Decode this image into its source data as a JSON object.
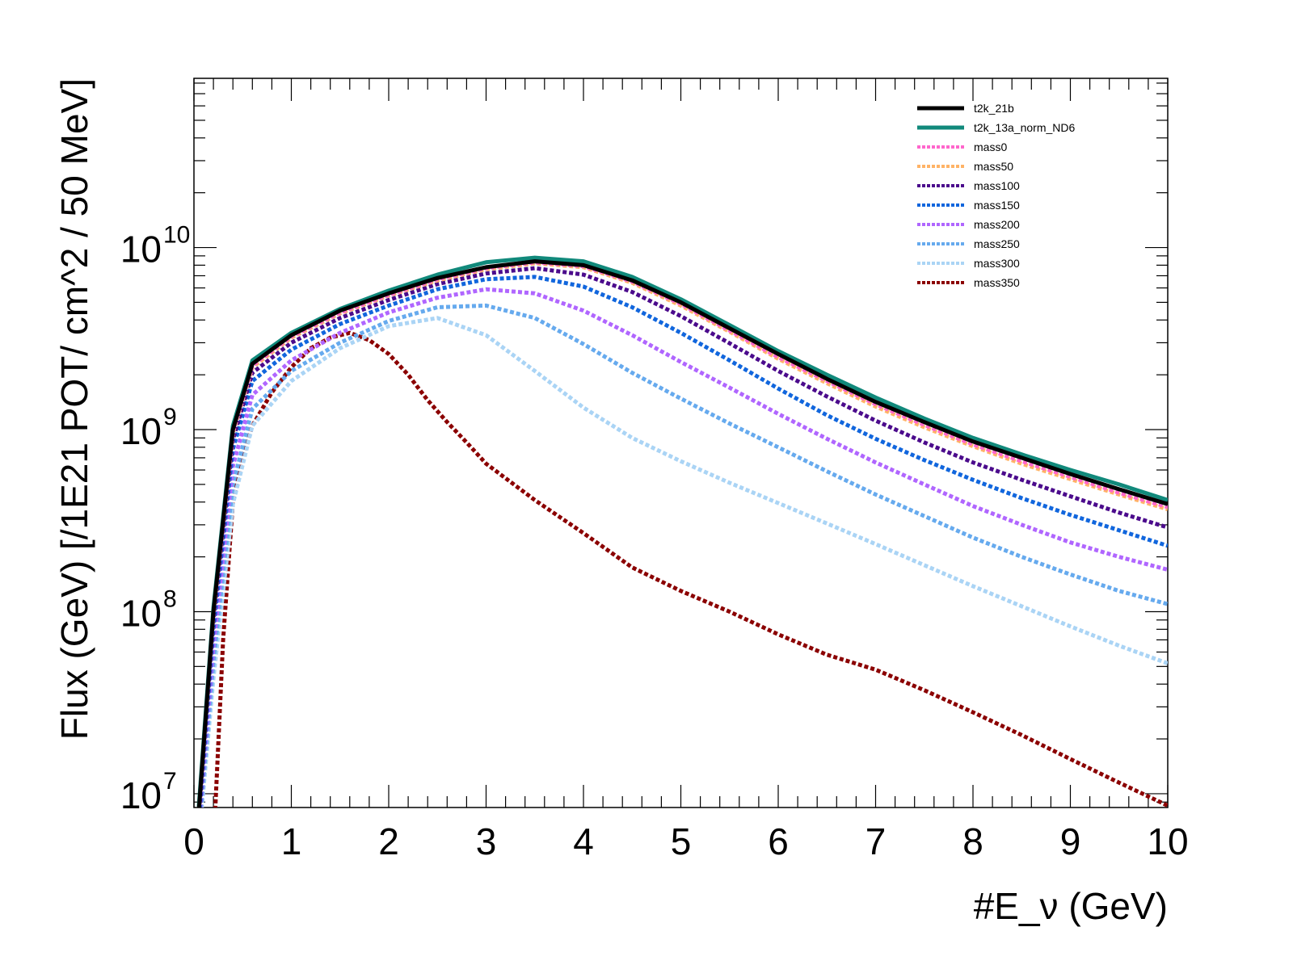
{
  "chart_data": {
    "type": "line",
    "xlabel": "#E_ν (GeV)",
    "ylabel": "Flux (GeV) [/1E21 POT/ cm^2 / 50 MeV]",
    "xlim": [
      0,
      10
    ],
    "ylim": [
      8400000.0,
      85000000000.0
    ],
    "yscale": "log",
    "x_ticks": [
      "0",
      "1",
      "2",
      "3",
      "4",
      "5",
      "6",
      "7",
      "8",
      "9",
      "10"
    ],
    "y_ticks": [
      {
        "base": "10",
        "exp": "7",
        "value": 10000000.0
      },
      {
        "base": "10",
        "exp": "8",
        "value": 100000000.0
      },
      {
        "base": "10",
        "exp": "9",
        "value": 1000000000.0
      },
      {
        "base": "10",
        "exp": "10",
        "value": 10000000000.0
      }
    ],
    "legend_position": "top-right",
    "grid": false,
    "series": [
      {
        "name": "t2k_21b",
        "color": "#000000",
        "style": "solid",
        "x": [
          0.05,
          0.2,
          0.4,
          0.6,
          1,
          1.5,
          2,
          2.5,
          3,
          3.5,
          4,
          4.5,
          5,
          5.5,
          6,
          6.5,
          7,
          7.5,
          8,
          8.5,
          9,
          9.5,
          10
        ],
        "y": [
          8000000.0,
          100000000.0,
          1000000000.0,
          2300000000.0,
          3300000000.0,
          4500000000.0,
          5600000000.0,
          6800000000.0,
          7800000000.0,
          8400000000.0,
          8000000000.0,
          6600000000.0,
          5000000000.0,
          3600000000.0,
          2600000000.0,
          1900000000.0,
          1420000000.0,
          1100000000.0,
          860000000.0,
          700000000.0,
          570000000.0,
          470000000.0,
          390000000.0
        ]
      },
      {
        "name": "t2k_13a_norm_ND6",
        "color": "#11897b",
        "style": "solid",
        "x": [
          0.05,
          0.2,
          0.4,
          0.6,
          1,
          1.5,
          2,
          2.5,
          3,
          3.5,
          4,
          4.5,
          5,
          5.5,
          6,
          6.5,
          7,
          7.5,
          8,
          8.5,
          9,
          9.5,
          10
        ],
        "y": [
          8500000.0,
          105000000.0,
          1050000000.0,
          2400000000.0,
          3400000000.0,
          4600000000.0,
          5800000000.0,
          7100000000.0,
          8300000000.0,
          8800000000.0,
          8400000000.0,
          6900000000.0,
          5200000000.0,
          3750000000.0,
          2700000000.0,
          2000000000.0,
          1500000000.0,
          1150000000.0,
          900000000.0,
          730000000.0,
          600000000.0,
          500000000.0,
          410000000.0
        ]
      },
      {
        "name": "mass0",
        "color": "#ff66cc",
        "style": "dotted",
        "x": [
          0.05,
          0.2,
          0.4,
          0.6,
          1,
          1.5,
          2,
          2.5,
          3,
          3.5,
          4,
          4.5,
          5,
          5.5,
          6,
          6.5,
          7,
          7.5,
          8,
          8.5,
          9,
          9.5,
          10
        ],
        "y": [
          8000000.0,
          100000000.0,
          980000000.0,
          2250000000.0,
          3250000000.0,
          4400000000.0,
          5500000000.0,
          6700000000.0,
          7700000000.0,
          8300000000.0,
          7900000000.0,
          6500000000.0,
          4900000000.0,
          3500000000.0,
          2500000000.0,
          1850000000.0,
          1380000000.0,
          1060000000.0,
          830000000.0,
          670000000.0,
          550000000.0,
          450000000.0,
          375000000.0
        ]
      },
      {
        "name": "mass50",
        "color": "#ffb366",
        "style": "dotted",
        "x": [
          0.05,
          0.2,
          0.4,
          0.6,
          1,
          1.5,
          2,
          2.5,
          3,
          3.5,
          4,
          4.5,
          5,
          5.5,
          6,
          6.5,
          7,
          7.5,
          8,
          8.5,
          9,
          9.5,
          10
        ],
        "y": [
          8000000.0,
          98000000.0,
          960000000.0,
          2200000000.0,
          3200000000.0,
          4350000000.0,
          5450000000.0,
          6600000000.0,
          7600000000.0,
          8200000000.0,
          7800000000.0,
          6400000000.0,
          4800000000.0,
          3450000000.0,
          2450000000.0,
          1800000000.0,
          1340000000.0,
          1030000000.0,
          810000000.0,
          650000000.0,
          535000000.0,
          440000000.0,
          365000000.0
        ]
      },
      {
        "name": "mass100",
        "color": "#4b0b8c",
        "style": "dotted",
        "x": [
          0.05,
          0.2,
          0.4,
          0.6,
          1,
          1.5,
          2,
          2.5,
          3,
          3.5,
          4,
          4.5,
          5,
          5.5,
          6,
          6.5,
          7,
          7.5,
          8,
          8.5,
          9,
          9.5,
          10
        ],
        "y": [
          7500000.0,
          90000000.0,
          880000000.0,
          2050000000.0,
          3000000000.0,
          4100000000.0,
          5150000000.0,
          6300000000.0,
          7200000000.0,
          7700000000.0,
          7100000000.0,
          5700000000.0,
          4200000000.0,
          2980000000.0,
          2100000000.0,
          1520000000.0,
          1120000000.0,
          850000000.0,
          660000000.0,
          530000000.0,
          430000000.0,
          350000000.0,
          290000000.0
        ]
      },
      {
        "name": "mass150",
        "color": "#1166dd",
        "style": "dotted",
        "x": [
          0.05,
          0.2,
          0.4,
          0.6,
          1,
          1.5,
          2,
          2.5,
          3,
          3.5,
          4,
          4.5,
          5,
          5.5,
          6,
          6.5,
          7,
          7.5,
          8,
          8.5,
          9,
          9.5,
          10
        ],
        "y": [
          7000000.0,
          80000000.0,
          780000000.0,
          1850000000.0,
          2750000000.0,
          3800000000.0,
          4800000000.0,
          5900000000.0,
          6700000000.0,
          6900000000.0,
          6100000000.0,
          4700000000.0,
          3400000000.0,
          2400000000.0,
          1680000000.0,
          1200000000.0,
          890000000.0,
          680000000.0,
          530000000.0,
          420000000.0,
          340000000.0,
          280000000.0,
          230000000.0
        ]
      },
      {
        "name": "mass200",
        "color": "#b066ff",
        "style": "dotted",
        "x": [
          0.05,
          0.2,
          0.4,
          0.6,
          1,
          1.5,
          2,
          2.5,
          3,
          3.5,
          4,
          4.5,
          5,
          5.5,
          6,
          6.5,
          7,
          7.5,
          8,
          8.5,
          9,
          9.5,
          10
        ],
        "y": [
          6500000.0,
          65000000.0,
          630000000.0,
          1550000000.0,
          2400000000.0,
          3400000000.0,
          4400000000.0,
          5300000000.0,
          5900000000.0,
          5600000000.0,
          4500000000.0,
          3300000000.0,
          2350000000.0,
          1700000000.0,
          1220000000.0,
          890000000.0,
          660000000.0,
          500000000.0,
          380000000.0,
          300000000.0,
          240000000.0,
          200000000.0,
          170000000.0
        ]
      },
      {
        "name": "mass250",
        "color": "#66aaee",
        "style": "dotted",
        "x": [
          0.05,
          0.2,
          0.4,
          0.6,
          1,
          1.5,
          2,
          2.5,
          3,
          3.5,
          4,
          4.5,
          5,
          5.5,
          6,
          6.5,
          7,
          7.5,
          8,
          8.5,
          9,
          9.5,
          10
        ],
        "y": [
          6000000.0,
          53000000.0,
          500000000.0,
          1300000000.0,
          2100000000.0,
          3000000000.0,
          3950000000.0,
          4700000000.0,
          4800000000.0,
          4100000000.0,
          2950000000.0,
          2050000000.0,
          1480000000.0,
          1080000000.0,
          800000000.0,
          590000000.0,
          440000000.0,
          335000000.0,
          255000000.0,
          200000000.0,
          160000000.0,
          130000000.0,
          110000000.0
        ]
      },
      {
        "name": "mass300",
        "color": "#aad4f5",
        "style": "dotted",
        "x": [
          0.05,
          0.2,
          0.4,
          0.6,
          1,
          1.5,
          2,
          2.5,
          3,
          3.5,
          4,
          4.5,
          5,
          5.5,
          6,
          6.5,
          7,
          7.5,
          8,
          8.5,
          9,
          9.5,
          10
        ],
        "y": [
          5500000.0,
          43000000.0,
          390000000.0,
          1050000000.0,
          1850000000.0,
          2800000000.0,
          3700000000.0,
          4100000000.0,
          3300000000.0,
          2100000000.0,
          1320000000.0,
          900000000.0,
          670000000.0,
          510000000.0,
          395000000.0,
          305000000.0,
          235000000.0,
          180000000.0,
          138000000.0,
          107000000.0,
          83000000.0,
          65000000.0,
          52000000.0
        ]
      },
      {
        "name": "mass350",
        "color": "#8b0000",
        "style": "dotted",
        "x": [
          0.2,
          0.3,
          0.4,
          0.5,
          0.6,
          0.8,
          1,
          1.2,
          1.4,
          1.6,
          1.8,
          2,
          2.2,
          2.4,
          2.6,
          2.8,
          3,
          3.5,
          4,
          4.5,
          5,
          5.5,
          6,
          6.5,
          7,
          7.5,
          8,
          8.5,
          9,
          9.5,
          10
        ],
        "y": [
          5000000.0,
          70000000.0,
          400000000.0,
          720000000.0,
          1050000000.0,
          1600000000.0,
          2200000000.0,
          2800000000.0,
          3200000000.0,
          3400000000.0,
          3100000000.0,
          2600000000.0,
          2000000000.0,
          1450000000.0,
          1100000000.0,
          850000000.0,
          650000000.0,
          410000000.0,
          270000000.0,
          175000000.0,
          130000000.0,
          100000000.0,
          75000000.0,
          58000000.0,
          48000000.0,
          37000000.0,
          28000000.0,
          21000000.0,
          15500000.0,
          11500000.0,
          8600000.0
        ]
      }
    ]
  }
}
